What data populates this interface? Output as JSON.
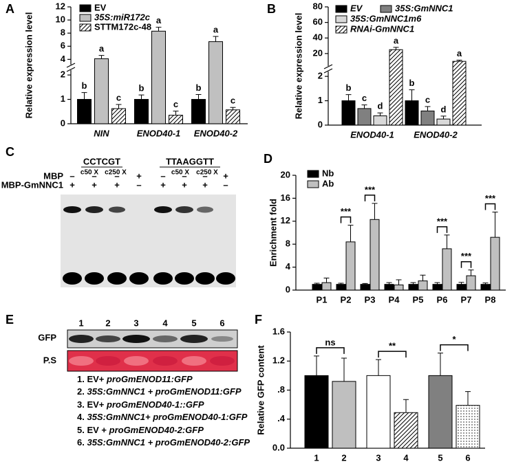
{
  "chart_data": [
    {
      "type": "bar",
      "panel": "A",
      "ylabel": "Relative expression level",
      "categories": [
        "NIN",
        "ENOD40-1",
        "ENOD40-2"
      ],
      "category_italic": true,
      "ylim": [
        0,
        12
      ],
      "y_break": [
        2.2,
        3.2
      ],
      "yticks": [
        0,
        1,
        2,
        4,
        6,
        8,
        10,
        12
      ],
      "series": [
        {
          "name": "EV",
          "color": "#000000",
          "values": [
            1.0,
            1.0,
            1.0
          ],
          "errors": [
            0.28,
            0.18,
            0.2
          ],
          "letters": [
            "b",
            "b",
            "b"
          ]
        },
        {
          "name": "35S:miR172c",
          "color": "#c0c0c0",
          "italic": true,
          "values": [
            4.1,
            8.3,
            6.7
          ],
          "errors": [
            0.5,
            0.6,
            0.8
          ],
          "letters": [
            "a",
            "a",
            "a"
          ]
        },
        {
          "name": "STTM172c-48",
          "color": "#ffffff",
          "pattern": "hatch",
          "values": [
            0.62,
            0.35,
            0.57
          ],
          "errors": [
            0.17,
            0.17,
            0.1
          ],
          "letters": [
            "c",
            "c",
            "c"
          ]
        }
      ]
    },
    {
      "type": "bar",
      "panel": "B",
      "ylabel": "Relative expression level",
      "categories": [
        "ENOD40-1",
        "ENOD40-2"
      ],
      "category_italic": true,
      "ylim": [
        0,
        80
      ],
      "y_break": [
        2.2,
        4
      ],
      "yticks": [
        0,
        1,
        2,
        20,
        40,
        60,
        80
      ],
      "series": [
        {
          "name": "EV",
          "color": "#000000",
          "italic": true,
          "values": [
            1.0,
            1.0
          ],
          "errors": [
            0.25,
            0.45
          ],
          "letters": [
            "b",
            "b"
          ]
        },
        {
          "name": "35S:GmNNC1",
          "color": "#808080",
          "italic": true,
          "values": [
            0.68,
            0.58
          ],
          "errors": [
            0.15,
            0.18
          ],
          "letters": [
            "c",
            "c"
          ]
        },
        {
          "name": "35S:GmNNC1m6",
          "color": "#d9d9d9",
          "italic": true,
          "values": [
            0.38,
            0.25
          ],
          "errors": [
            0.12,
            0.12
          ],
          "letters": [
            "d",
            "d"
          ]
        },
        {
          "name": "RNAi-GmNNC1",
          "color": "#ffffff",
          "pattern": "hatch",
          "italic": true,
          "values": [
            25,
            10
          ],
          "errors": [
            3,
            1.5
          ],
          "letters": [
            "a",
            "a"
          ]
        }
      ]
    },
    {
      "type": "bar",
      "panel": "D",
      "ylabel": "Enrichment fold",
      "categories": [
        "P1",
        "P2",
        "P3",
        "P4",
        "P5",
        "P6",
        "P7",
        "P8"
      ],
      "ylim": [
        0,
        20
      ],
      "yticks": [
        0,
        4,
        8,
        12,
        16,
        20
      ],
      "series": [
        {
          "name": "Nb",
          "color": "#000000",
          "values": [
            1,
            1,
            1,
            1,
            1,
            1,
            1,
            1
          ],
          "errors": [
            0.2,
            0.2,
            0.15,
            0.3,
            0.3,
            0.3,
            0.35,
            0.25
          ]
        },
        {
          "name": "Ab",
          "color": "#c0c0c0",
          "values": [
            1.3,
            8.4,
            12.3,
            0.9,
            1.6,
            7.2,
            2.5,
            9.2
          ],
          "errors": [
            0.8,
            2.9,
            2.8,
            0.9,
            1.0,
            2.4,
            1.0,
            4.4
          ]
        }
      ],
      "significance": [
        null,
        "***",
        "***",
        null,
        null,
        "***",
        "***",
        "***"
      ]
    },
    {
      "type": "bar",
      "panel": "F",
      "ylabel": "Relative GFP content",
      "categories": [
        "1",
        "2",
        "3",
        "4",
        "5",
        "6"
      ],
      "values": [
        1.0,
        0.92,
        1.0,
        0.49,
        1.0,
        0.59
      ],
      "errors": [
        0.27,
        0.32,
        0.22,
        0.18,
        0.31,
        0.19
      ],
      "colors": [
        "#000000",
        "#bfbfbf",
        "#ffffff",
        "#ffffff",
        "#808080",
        "#ffffff"
      ],
      "patterns": [
        null,
        null,
        null,
        "hatch",
        null,
        "dots"
      ],
      "ylim": [
        0,
        1.6
      ],
      "yticks": [
        {
          "value": 0,
          "label": "0.0"
        },
        {
          "value": 0.4,
          "label": ".4"
        },
        {
          "value": 0.8,
          "label": ".8"
        },
        {
          "value": 1.2,
          "label": "1.2"
        },
        1.6
      ],
      "significance": [
        "ns",
        null,
        "**",
        null,
        "*",
        null
      ]
    }
  ],
  "gel": {
    "panel": "C",
    "probes": [
      {
        "name": "CCTCGT",
        "competitors": [
          "c50 X",
          "c250 X"
        ]
      },
      {
        "name": "TTAAGGTT",
        "competitors": [
          "c50 X",
          "c250 X"
        ]
      }
    ],
    "rows": [
      {
        "label": "MBP",
        "signs": [
          "–",
          "–",
          "–",
          "+",
          "–",
          "–",
          "–",
          "+"
        ]
      },
      {
        "label": "MBP-GmNNC1",
        "signs": [
          "+",
          "+",
          "+",
          "–",
          "+",
          "+",
          "+",
          "–"
        ]
      }
    ]
  },
  "blot": {
    "panel": "E",
    "lanes": [
      "1",
      "2",
      "3",
      "4",
      "5",
      "6"
    ],
    "rows": [
      "GFP",
      "P.S"
    ],
    "items": [
      [
        "1. EV+ ",
        "proGmENOD11:GFP"
      ],
      [
        "2. ",
        "35S:GmNNC1 + proGmENOD11:GFP"
      ],
      [
        "3. EV+ ",
        "proGmENOD40-1::GFP"
      ],
      [
        "4. ",
        "35S:GmNNC1+ proGmENOD40-1:GFP"
      ],
      [
        "5. EV + ",
        "proGmENOD40-2:GFP"
      ],
      [
        "6. ",
        "35S:GmNNC1 + proGmENOD40-2:GFP"
      ]
    ]
  }
}
